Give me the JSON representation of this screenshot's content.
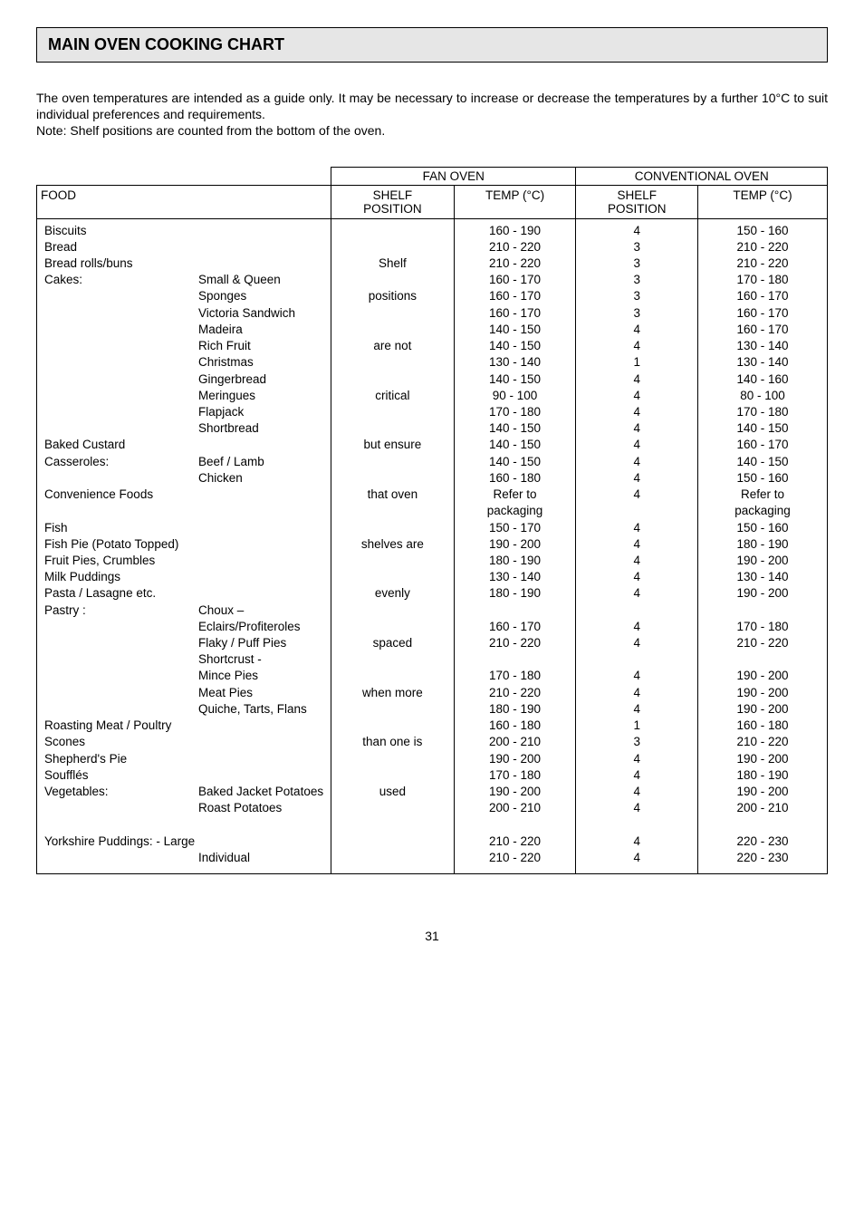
{
  "title": "MAIN OVEN COOKING CHART",
  "intro": "The oven temperatures are intended as a guide only.  It may be necessary to increase or decrease the temperatures by a further 10°C to suit individual preferences and requirements.",
  "intro_note": "Note: Shelf positions are counted from the bottom of the oven.",
  "headers": {
    "food": "FOOD",
    "fan_oven": "FAN OVEN",
    "conv_oven": "CONVENTIONAL OVEN",
    "shelf_pos": "SHELF POSITION",
    "temp_c": "TEMP (°C)"
  },
  "rows": [
    {
      "food": "Biscuits",
      "sub": "",
      "shelf": "",
      "temp": "160 - 190",
      "cshelf": "4",
      "ctemp": "150 - 160"
    },
    {
      "food": "Bread",
      "sub": "",
      "shelf": "",
      "temp": "210 - 220",
      "cshelf": "3",
      "ctemp": "210 - 220"
    },
    {
      "food": "Bread rolls/buns",
      "sub": "",
      "shelf": "Shelf",
      "temp": "210 - 220",
      "cshelf": "3",
      "ctemp": "210 - 220"
    },
    {
      "food": "Cakes:",
      "sub": "Small & Queen",
      "shelf": "",
      "temp": "160 - 170",
      "cshelf": "3",
      "ctemp": "170 - 180"
    },
    {
      "food": "",
      "sub": "Sponges",
      "shelf": "positions",
      "temp": "160 - 170",
      "cshelf": "3",
      "ctemp": "160 - 170"
    },
    {
      "food": "",
      "sub": "Victoria Sandwich",
      "shelf": "",
      "temp": "160 - 170",
      "cshelf": "3",
      "ctemp": "160 - 170"
    },
    {
      "food": "",
      "sub": "Madeira",
      "shelf": "",
      "temp": "140 - 150",
      "cshelf": "4",
      "ctemp": "160 - 170"
    },
    {
      "food": "",
      "sub": "Rich Fruit",
      "shelf": "are not",
      "temp": "140 - 150",
      "cshelf": "4",
      "ctemp": "130 - 140"
    },
    {
      "food": "",
      "sub": "Christmas",
      "shelf": "",
      "temp": "130 - 140",
      "cshelf": "1",
      "ctemp": "130 - 140"
    },
    {
      "food": "",
      "sub": "Gingerbread",
      "shelf": "",
      "temp": "140 - 150",
      "cshelf": "4",
      "ctemp": "140 - 160"
    },
    {
      "food": "",
      "sub": "Meringues",
      "shelf": "critical",
      "temp": "90  - 100",
      "cshelf": "4",
      "ctemp": "80 - 100"
    },
    {
      "food": "",
      "sub": "Flapjack",
      "shelf": "",
      "temp": "170 - 180",
      "cshelf": "4",
      "ctemp": "170 - 180"
    },
    {
      "food": "",
      "sub": "Shortbread",
      "shelf": "",
      "temp": "140 - 150",
      "cshelf": "4",
      "ctemp": "140 - 150"
    },
    {
      "food": "Baked Custard",
      "sub": "",
      "shelf": "but ensure",
      "temp": "140 - 150",
      "cshelf": "4",
      "ctemp": "160 - 170"
    },
    {
      "food": "Casseroles:",
      "sub": "Beef / Lamb",
      "shelf": "",
      "temp": "140 - 150",
      "cshelf": "4",
      "ctemp": "140 - 150"
    },
    {
      "food": "",
      "sub": "Chicken",
      "shelf": "",
      "temp": "160 - 180",
      "cshelf": "4",
      "ctemp": "150 - 160"
    },
    {
      "food": "Convenience Foods",
      "sub": "",
      "shelf": "that oven",
      "temp": "Refer to",
      "cshelf": "4",
      "ctemp": "Refer to"
    },
    {
      "food": "",
      "sub": "",
      "shelf": "",
      "temp": "packaging",
      "cshelf": "",
      "ctemp": "packaging"
    },
    {
      "food": "Fish",
      "sub": "",
      "shelf": "",
      "temp": "150 - 170",
      "cshelf": "4",
      "ctemp": "150 - 160"
    },
    {
      "food": "Fish Pie (Potato Topped)",
      "sub": "",
      "shelf": "shelves are",
      "temp": "190 - 200",
      "cshelf": "4",
      "ctemp": "180 - 190"
    },
    {
      "food": "Fruit Pies, Crumbles",
      "sub": "",
      "shelf": "",
      "temp": "180 - 190",
      "cshelf": "4",
      "ctemp": "190 - 200"
    },
    {
      "food": "Milk Puddings",
      "sub": "",
      "shelf": "",
      "temp": "130 - 140",
      "cshelf": "4",
      "ctemp": "130 - 140"
    },
    {
      "food": "Pasta / Lasagne etc.",
      "sub": "",
      "shelf": "evenly",
      "temp": "180 - 190",
      "cshelf": "4",
      "ctemp": "190 - 200"
    },
    {
      "food": "Pastry :",
      "sub": "Choux –",
      "shelf": "",
      "temp": "",
      "cshelf": "",
      "ctemp": ""
    },
    {
      "food": "",
      "sub": "Eclairs/Profiteroles",
      "shelf": "",
      "temp": "160 - 170",
      "cshelf": "4",
      "ctemp": "170 - 180"
    },
    {
      "food": "",
      "sub": "Flaky / Puff Pies",
      "shelf": "spaced",
      "temp": "210 - 220",
      "cshelf": "4",
      "ctemp": "210 - 220"
    },
    {
      "food": "",
      "sub": "Shortcrust -",
      "shelf": "",
      "temp": "",
      "cshelf": "",
      "ctemp": ""
    },
    {
      "food": "",
      "sub": "Mince Pies",
      "shelf": "",
      "temp": "170 - 180",
      "cshelf": "4",
      "ctemp": "190 - 200"
    },
    {
      "food": "",
      "sub": "Meat Pies",
      "shelf": "when more",
      "temp": "210 - 220",
      "cshelf": "4",
      "ctemp": "190 - 200"
    },
    {
      "food": "",
      "sub": "Quiche, Tarts, Flans",
      "shelf": "",
      "temp": "180 - 190",
      "cshelf": "4",
      "ctemp": "190 - 200"
    },
    {
      "food": "Roasting Meat / Poultry",
      "sub": "",
      "shelf": "",
      "temp": "160 - 180",
      "cshelf": "1",
      "ctemp": "160 - 180"
    },
    {
      "food": "Scones",
      "sub": "",
      "shelf": "than one is",
      "temp": "200 - 210",
      "cshelf": "3",
      "ctemp": "210 - 220"
    },
    {
      "food": "Shepherd's Pie",
      "sub": "",
      "shelf": "",
      "temp": "190 - 200",
      "cshelf": "4",
      "ctemp": "190 - 200"
    },
    {
      "food": "Soufflés",
      "sub": "",
      "shelf": "",
      "temp": "170 - 180",
      "cshelf": "4",
      "ctemp": "180 - 190"
    },
    {
      "food": "Vegetables:",
      "sub": "Baked Jacket Potatoes",
      "shelf": "used",
      "temp": "190 - 200",
      "cshelf": "4",
      "ctemp": "190 - 200"
    },
    {
      "food": "",
      "sub": "Roast Potatoes",
      "shelf": "",
      "temp": "200 - 210",
      "cshelf": "4",
      "ctemp": "200 - 210"
    },
    {
      "food": "",
      "sub": "",
      "shelf": "",
      "temp": "",
      "cshelf": "",
      "ctemp": ""
    },
    {
      "food": "Yorkshire Puddings: - Large",
      "sub": "",
      "shelf": "",
      "temp": "210 - 220",
      "cshelf": "4",
      "ctemp": "220 - 230"
    },
    {
      "food": "",
      "sub": "Individual",
      "shelf": "",
      "temp": "210 - 220",
      "cshelf": "4",
      "ctemp": "220 - 230"
    }
  ],
  "page_number": "31",
  "colors": {
    "title_bg": "#e6e6e6",
    "border": "#000000",
    "text": "#000000",
    "page_bg": "#ffffff"
  }
}
